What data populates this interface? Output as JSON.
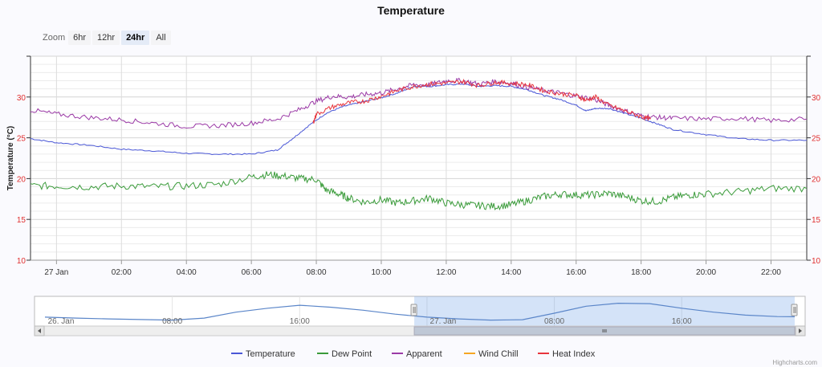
{
  "title": "Temperature",
  "zoom": {
    "label": "Zoom",
    "buttons": [
      "6hr",
      "12hr",
      "24hr",
      "All"
    ],
    "selected": "24hr"
  },
  "credit": "Highcharts.com",
  "chart_data": {
    "type": "line",
    "title": "Temperature",
    "ylabel": "Temperature (°C)",
    "ylim": [
      10,
      35
    ],
    "yticks": [
      10,
      15,
      20,
      25,
      30
    ],
    "xlim_hours": [
      -0.8,
      23.1
    ],
    "xticks": [
      {
        "h": 0,
        "label": "27 Jan"
      },
      {
        "h": 2,
        "label": "02:00"
      },
      {
        "h": 4,
        "label": "04:00"
      },
      {
        "h": 6,
        "label": "06:00"
      },
      {
        "h": 8,
        "label": "08:00"
      },
      {
        "h": 10,
        "label": "10:00"
      },
      {
        "h": 12,
        "label": "12:00"
      },
      {
        "h": 14,
        "label": "14:00"
      },
      {
        "h": 16,
        "label": "16:00"
      },
      {
        "h": 18,
        "label": "18:00"
      },
      {
        "h": 20,
        "label": "20:00"
      },
      {
        "h": 22,
        "label": "22:00"
      }
    ],
    "grid": true,
    "legend_position": "bottom-center",
    "series": [
      {
        "name": "Temperature",
        "color": "#4a57d6",
        "x": [
          -0.8,
          0,
          1,
          2,
          3,
          4,
          5,
          6,
          6.8,
          7.3,
          7.8,
          8.3,
          8.8,
          9.3,
          10,
          10.5,
          11,
          11.5,
          12,
          12.5,
          13,
          13.5,
          14,
          14.5,
          15,
          15.5,
          16,
          16.3,
          16.6,
          17,
          17.5,
          18,
          18.5,
          19,
          20,
          21,
          22,
          23.1
        ],
        "y": [
          24.9,
          24.4,
          24.1,
          23.6,
          23.4,
          23.1,
          23.0,
          23.0,
          23.5,
          25.0,
          26.6,
          28.0,
          28.8,
          29.3,
          29.9,
          30.5,
          31.3,
          31.3,
          31.5,
          31.6,
          31.3,
          31.4,
          31.3,
          30.9,
          30.2,
          29.7,
          29.0,
          28.3,
          28.6,
          28.6,
          28.0,
          27.4,
          26.7,
          26.0,
          25.4,
          24.9,
          24.7,
          24.7
        ]
      },
      {
        "name": "Dew Point",
        "color": "#3a9b3a",
        "x": [
          -0.8,
          0,
          1,
          2,
          3,
          4,
          5,
          6,
          6.5,
          7,
          7.5,
          8,
          8.3,
          8.7,
          9,
          9.5,
          10,
          10.5,
          11,
          11.5,
          12,
          12.5,
          13,
          13.5,
          14,
          14.5,
          15,
          15.5,
          16,
          16.5,
          17,
          17.5,
          18,
          18.5,
          19,
          19.5,
          20,
          21,
          22,
          23.1
        ],
        "y": [
          19.1,
          19.1,
          19.0,
          19.1,
          19.0,
          19.1,
          19.3,
          20.2,
          20.5,
          20.3,
          20.0,
          19.9,
          18.6,
          18.1,
          17.6,
          17.1,
          17.4,
          17.0,
          17.3,
          17.6,
          17.0,
          16.8,
          16.7,
          16.6,
          16.8,
          17.3,
          17.8,
          18.1,
          18.0,
          18.0,
          18.2,
          17.8,
          17.3,
          17.2,
          17.7,
          18.0,
          18.1,
          18.4,
          18.8,
          18.8
        ]
      },
      {
        "name": "Apparent",
        "color": "#9b3aa6",
        "x": [
          -0.8,
          0,
          1,
          2,
          3,
          4,
          5,
          6,
          6.8,
          7.5,
          8,
          8.5,
          9,
          9.5,
          10,
          10.5,
          11,
          11.5,
          12,
          12.5,
          13,
          13.5,
          14,
          14.5,
          15,
          15.5,
          16,
          16.5,
          17,
          17.5,
          18,
          18.5,
          19,
          20,
          21,
          22,
          23.1
        ],
        "y": [
          28.4,
          27.9,
          27.5,
          27.2,
          26.8,
          26.4,
          26.5,
          26.8,
          27.3,
          28.5,
          29.5,
          30.1,
          30.0,
          30.3,
          30.5,
          31.0,
          31.5,
          31.5,
          32.0,
          32.0,
          31.6,
          31.9,
          31.7,
          31.2,
          30.8,
          30.5,
          30.1,
          29.8,
          29.0,
          28.3,
          27.7,
          27.5,
          27.4,
          27.3,
          27.4,
          27.1,
          27.3
        ]
      },
      {
        "name": "Wind Chill",
        "color": "#f5a623",
        "x": [],
        "y": []
      },
      {
        "name": "Heat Index",
        "color": "#e8353d",
        "x": [
          7.9,
          8,
          8.5,
          9,
          9.5,
          10,
          10.5,
          11,
          11.5,
          12,
          12.5,
          13,
          13.5,
          14,
          14.5,
          15,
          15.5,
          16,
          16.3,
          16.6,
          17,
          17.5,
          18,
          18.3
        ],
        "y": [
          26.8,
          27.9,
          28.8,
          29.3,
          29.5,
          30.1,
          30.8,
          31.3,
          31.6,
          31.7,
          31.9,
          31.4,
          31.8,
          31.7,
          31.5,
          30.8,
          30.4,
          30.2,
          29.6,
          30.0,
          29.0,
          28.3,
          27.6,
          27.3
        ]
      }
    ]
  },
  "navigator": {
    "labels": [
      "26. Jan",
      "08:00",
      "16:00",
      "27. Jan",
      "08:00",
      "16:00"
    ],
    "series": {
      "x": [
        -24,
        -22,
        -20,
        -18,
        -16,
        -14,
        -12,
        -10,
        -8,
        -6,
        -4,
        -2,
        0,
        2,
        4,
        6,
        8,
        10,
        12,
        14,
        16,
        18,
        20,
        22,
        23.1
      ],
      "y": [
        24.5,
        24.0,
        23.6,
        23.3,
        23.0,
        24.0,
        27.0,
        29.0,
        30.5,
        29.5,
        28.0,
        26.0,
        24.5,
        23.6,
        23.0,
        23.2,
        26.5,
        30.0,
        31.5,
        31.3,
        29.0,
        27.0,
        25.5,
        24.8,
        24.7
      ]
    },
    "range_hours": [
      -0.8,
      23.1
    ]
  }
}
